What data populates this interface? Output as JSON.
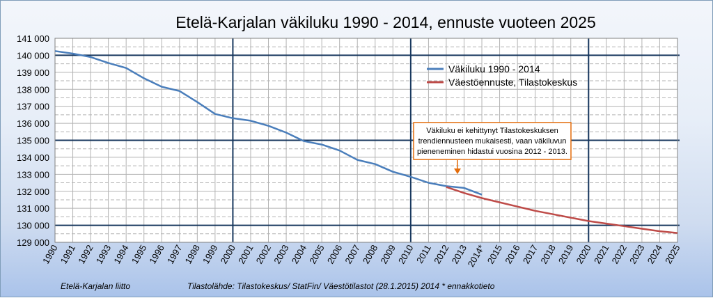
{
  "chart_data": {
    "type": "line",
    "title": "Etelä-Karjalan väkiluku 1990 - 2014, ennuste vuoteen 2025",
    "xlabel": "",
    "ylabel": "",
    "ylim": [
      129000,
      141000
    ],
    "y_ticks": [
      "129 000",
      "130 000",
      "131 000",
      "132 000",
      "133 000",
      "134 000",
      "135 000",
      "136 000",
      "137 000",
      "138 000",
      "139 000",
      "140 000",
      "141 000"
    ],
    "categories": [
      "1990",
      "1991",
      "1992",
      "1993",
      "1994",
      "1995",
      "1996",
      "1997",
      "1998",
      "1999",
      "2000",
      "2001",
      "2002",
      "2003",
      "2004",
      "2005",
      "2006",
      "2007",
      "2008",
      "2009",
      "2010",
      "2011",
      "2012",
      "2013",
      "2014*",
      "2015",
      "2016",
      "2017",
      "2018",
      "2019",
      "2020",
      "2021",
      "2022",
      "2023",
      "2024",
      "2025"
    ],
    "grid": true,
    "legend_position": "right",
    "series": [
      {
        "name": "Väkiluku 1990 - 2014",
        "color": "#4a7ebb",
        "values": [
          140250,
          140100,
          139900,
          139550,
          139250,
          138650,
          138150,
          137900,
          137250,
          136550,
          136300,
          136150,
          135850,
          135450,
          134950,
          134750,
          134400,
          133850,
          133600,
          133150,
          132850,
          132500,
          132300,
          132200,
          131800,
          null,
          null,
          null,
          null,
          null,
          null,
          null,
          null,
          null,
          null,
          null
        ]
      },
      {
        "name": "Väestöennuste, Tilastokeskus",
        "color": "#be4b48",
        "values": [
          null,
          null,
          null,
          null,
          null,
          null,
          null,
          null,
          null,
          null,
          null,
          null,
          null,
          null,
          null,
          null,
          null,
          null,
          null,
          null,
          null,
          null,
          132250,
          131900,
          131600,
          131350,
          131100,
          130850,
          130650,
          130450,
          130250,
          130100,
          129950,
          129800,
          129650,
          129550
        ]
      }
    ],
    "annotation": {
      "lines": [
        "Väkiluku ei  kehittynyt Tilastokeskuksen",
        "trendiennusteen mukaisesti,  vaan väkiluvun",
        "pieneneminen hidastui  vuosina 2012 - 2013."
      ],
      "border_color": "#e46c0a",
      "arrow_color": "#e46c0a"
    }
  },
  "footer": {
    "left": "Etelä-Karjalan liitto",
    "right": "Tilastolähde: Tilastokeskus/ StatFin/ Väestötilastot (28.1.2015)  2014 * ennakkotieto"
  }
}
